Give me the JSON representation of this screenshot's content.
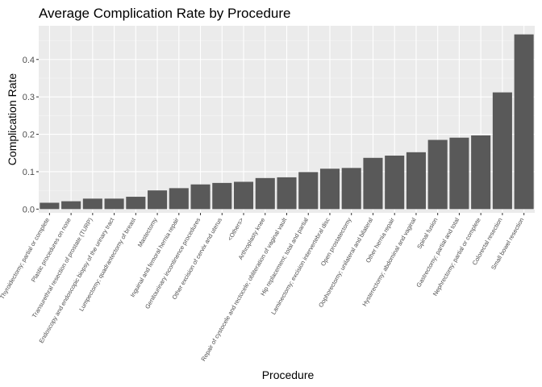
{
  "chart_data": {
    "type": "bar",
    "title": "Average Complication Rate by Procedure",
    "xlabel": "Procedure",
    "ylabel": "Complication Rate",
    "ylim": [
      -0.01,
      0.49
    ],
    "yticks": [
      "0.0",
      "0.1",
      "0.2",
      "0.3",
      "0.4"
    ],
    "grid": true,
    "bar_color": "#595959",
    "panel_color": "#ebebeb",
    "categories": [
      "Thyroidectomy; partial or complete",
      "Plastic procedures on nose",
      "Transurethral resection of prostate (TURP)",
      "Endoscopy and endoscopic biopsy of the urinary tract",
      "Lumpectomy; quadrantectomy of breast",
      "Mastectomy",
      "Inguinal and femoral hernia repair",
      "Genitourinary incontinence procedures",
      "Other excision of cervix and uterus",
      "<Others>",
      "Arthroplasty knee",
      "Repair of cystocele and rectocele; obliteration of vaginal vault",
      "Hip replacement; total and partial",
      "Laminectomy; excision intervertebral disc",
      "Open prostatectomy",
      "Oophorectomy; unilateral and bilateral",
      "Other hernia repair",
      "Hysterectomy; abdominal and vaginal",
      "Spinal fusion",
      "Gastrectomy; partial and total",
      "Nephrectomy; partial or complete",
      "Colorectal resection",
      "Small bowel resection"
    ],
    "values": [
      0.017,
      0.021,
      0.028,
      0.028,
      0.033,
      0.05,
      0.056,
      0.066,
      0.07,
      0.073,
      0.083,
      0.085,
      0.099,
      0.108,
      0.11,
      0.137,
      0.143,
      0.152,
      0.185,
      0.191,
      0.197,
      0.312,
      0.467
    ]
  }
}
